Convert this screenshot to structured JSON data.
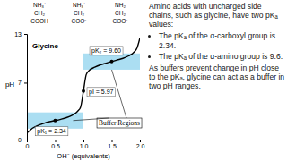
{
  "chart_data": {
    "type": "line",
    "title": "Glycine",
    "xlabel": "OH⁻ (equivalents)",
    "ylabel": "pH",
    "color": "#000000",
    "x": [
      0,
      0.05,
      0.1,
      0.2,
      0.3,
      0.4,
      0.5,
      0.6,
      0.7,
      0.8,
      0.9,
      0.95,
      1.0,
      1.05,
      1.1,
      1.2,
      1.3,
      1.4,
      1.5,
      1.6,
      1.7,
      1.8,
      1.9,
      1.95,
      2.0
    ],
    "values": [
      0.8,
      1.1,
      1.4,
      1.75,
      2.0,
      2.2,
      2.34,
      2.5,
      2.7,
      3.0,
      3.5,
      4.0,
      5.97,
      8.0,
      8.5,
      8.9,
      9.2,
      9.4,
      9.6,
      9.8,
      10.0,
      10.3,
      10.8,
      11.3,
      12.5
    ],
    "xlim": [
      0,
      2
    ],
    "ylim": [
      0,
      13
    ],
    "xticks": [
      0,
      0.5,
      {
        "value": 1,
        "label": "1.0"
      },
      1.5,
      {
        "value": 2,
        "label": "2.0"
      }
    ],
    "yticks": [
      0,
      7,
      13
    ],
    "annotations": [
      {
        "text": "pK₁ = 2.34",
        "x": 0.5,
        "y": 2.34
      },
      {
        "text": "pI = 5.97",
        "x": 1.0,
        "y": 5.97
      },
      {
        "text": "pK₂ = 9.60",
        "x": 1.5,
        "y": 9.6
      }
    ],
    "buffer_regions": [
      {
        "x": [
          0,
          1
        ],
        "y": [
          1.34,
          3.34
        ]
      },
      {
        "x": [
          1,
          2
        ],
        "y": [
          8.6,
          10.6
        ]
      }
    ],
    "callout": "Buffer Regions",
    "structures": [
      [
        "NH₃⁺",
        "CH₂",
        "COOH"
      ],
      [
        "NH₃⁺",
        "CH₂",
        "COO⁻"
      ],
      [
        "NH₂",
        "CH₂",
        "COO⁻"
      ]
    ]
  },
  "slide": {
    "intro": "Amino acids with uncharged side chains, such as glycine, have two pKₐ values:",
    "bullets": [
      "The pKₐ of the α-carboxyl group is 2.34.",
      "The pKₐ of the α-amino group is 9.6."
    ],
    "conclusion": "As buffers prevent change in pH close to the pKₐ, glycine can act as a buffer in two pH ranges."
  }
}
